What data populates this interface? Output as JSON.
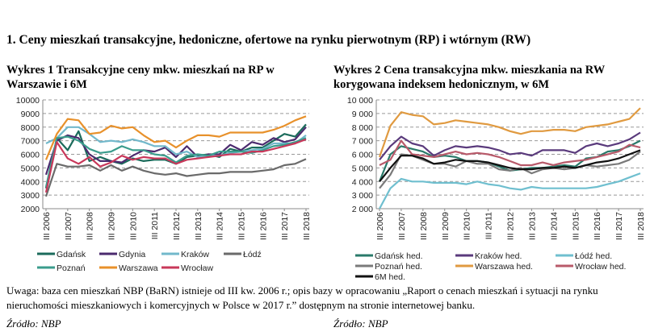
{
  "heading": "1. Ceny mieszkań transakcyjne, hedoniczne, ofertowe na rynku pierwotnym (RP) i wtórnym (RW)",
  "note": "Uwaga: baza cen mieszkań NBP (BaRN) istnieje od III kw. 2006 r.; opis bazy w opracowaniu „Raport o cenach mieszkań i sytuacji na rynku nieruchomości mieszkaniowych i komercyjnych w Polsce w 2017 r.” dostępnym na stronie internetowej banku.",
  "source_left": "Źródło: NBP",
  "source_right": "Źródło: NBP",
  "chart_data": [
    {
      "type": "line",
      "title": "Wykres 1 Transakcyjne ceny mkw. mieszkań na RP w Warszawie i 6M",
      "ylim": [
        2000,
        10000
      ],
      "yticks": [
        "2000",
        "3000",
        "4000",
        "5000",
        "6000",
        "7000",
        "8000",
        "9000",
        "10000"
      ],
      "xticks": [
        "III 2006",
        "III 2007",
        "III 2008",
        "III 2009",
        "III 2010",
        "III 2011",
        "III 2012",
        "III 2013",
        "III 2014",
        "III 2015",
        "III 2016",
        "III 2017",
        "III 2018"
      ],
      "x_points": "half-yearly from III 2006 to III 2018",
      "grid": "horizontal dashed",
      "legend": "bottom",
      "series": [
        {
          "name": "Gdańsk",
          "color": "#1b6b5b",
          "values": [
            3500,
            7200,
            6300,
            7700,
            5500,
            5800,
            5500,
            5300,
            5700,
            5500,
            5600,
            5600,
            5300,
            5800,
            5900,
            6000,
            5800,
            6400,
            6200,
            6500,
            6500,
            7000,
            7500,
            7300,
            8200
          ]
        },
        {
          "name": "Gdynia",
          "color": "#4b2a6e",
          "values": [
            4500,
            7000,
            7400,
            7200,
            6000,
            5500,
            5500,
            5400,
            5900,
            6300,
            6200,
            6500,
            5800,
            6600,
            5800,
            6000,
            6000,
            6700,
            6300,
            6900,
            6700,
            7200,
            6900,
            7100,
            8000
          ]
        },
        {
          "name": "Kraków",
          "color": "#72b8cb",
          "values": [
            6800,
            7200,
            8000,
            8000,
            7500,
            6900,
            7000,
            6900,
            7100,
            6900,
            6600,
            6600,
            6000,
            6200,
            5800,
            5900,
            5900,
            6100,
            6200,
            6300,
            6400,
            6800,
            6800,
            6800,
            7400
          ]
        },
        {
          "name": "Łódź",
          "color": "#6a6a6a",
          "values": [
            2900,
            5300,
            5100,
            5100,
            5200,
            4800,
            5200,
            4800,
            5100,
            4800,
            4600,
            4500,
            4600,
            4400,
            4500,
            4600,
            4600,
            4700,
            4700,
            4700,
            4800,
            4900,
            5200,
            5300,
            5650
          ]
        },
        {
          "name": "Poznań",
          "color": "#3a9c8c",
          "values": [
            3600,
            7200,
            7300,
            7000,
            6400,
            6100,
            6200,
            6600,
            6300,
            6300,
            6000,
            5900,
            5400,
            5900,
            6000,
            5900,
            6200,
            6200,
            6200,
            6100,
            6300,
            6600,
            6700,
            6900,
            7200
          ]
        },
        {
          "name": "Warszawa",
          "color": "#e8912b",
          "values": [
            5600,
            7500,
            8600,
            8500,
            7500,
            7600,
            8100,
            7900,
            8000,
            7400,
            6900,
            7000,
            6500,
            7000,
            7400,
            7400,
            7300,
            7600,
            7600,
            7600,
            7600,
            7800,
            8100,
            8500,
            8800
          ]
        },
        {
          "name": "Wrocław",
          "color": "#c8385a",
          "values": [
            3200,
            6900,
            5700,
            5300,
            5800,
            5100,
            5400,
            5900,
            5600,
            5800,
            5700,
            5700,
            5300,
            5600,
            5700,
            5800,
            5900,
            6000,
            6000,
            6200,
            6200,
            6400,
            6600,
            6800,
            7100
          ]
        }
      ]
    },
    {
      "type": "line",
      "title": "Wykres 2 Cena transakcyjna mkw. mieszkania na RW korygowana indeksem hedonicznym, w 6M",
      "ylim": [
        2000,
        10000
      ],
      "yticks": [
        "2 000",
        "3 000",
        "4 000",
        "5 000",
        "6 000",
        "7 000",
        "8 000",
        "9 000",
        "10 000"
      ],
      "xticks": [
        "III 2006",
        "III 2007",
        "III 2008",
        "III 2009",
        "III 2010",
        "III 2011",
        "III 2012",
        "III 2013",
        "III 2014",
        "III 2015",
        "III 2016",
        "III 2017",
        "III 2018"
      ],
      "x_points": "half-yearly from III 2006 to III 2018",
      "grid": "horizontal dashed",
      "legend": "bottom",
      "series": [
        {
          "name": "Gdańsk hed.",
          "color": "#2a7a6a",
          "values": [
            4000,
            6000,
            6600,
            6400,
            6200,
            5800,
            5900,
            5800,
            5500,
            5500,
            5400,
            5100,
            4800,
            4900,
            5000,
            5000,
            5100,
            5200,
            5100,
            5700,
            5800,
            6200,
            6300,
            6600,
            7000
          ]
        },
        {
          "name": "Kraków hed.",
          "color": "#5a3a7c",
          "values": [
            5600,
            6600,
            7300,
            6800,
            6600,
            5900,
            6300,
            6600,
            6500,
            6600,
            6500,
            6300,
            6000,
            6100,
            5900,
            6300,
            6300,
            6300,
            6100,
            6600,
            6800,
            6600,
            6800,
            7100,
            7600
          ]
        },
        {
          "name": "Łódź hed.",
          "color": "#6fbfcf",
          "values": [
            2000,
            3500,
            4200,
            4000,
            4000,
            3900,
            3900,
            3900,
            3800,
            4000,
            3800,
            3700,
            3500,
            3400,
            3600,
            3500,
            3500,
            3500,
            3500,
            3500,
            3600,
            3800,
            4000,
            4300,
            4600
          ]
        },
        {
          "name": "Poznań hed.",
          "color": "#7a7a7a",
          "values": [
            3500,
            4500,
            6000,
            5900,
            5600,
            5300,
            5300,
            5100,
            5500,
            5300,
            5300,
            4900,
            4800,
            5000,
            4600,
            4900,
            5000,
            4900,
            5000,
            5200,
            5100,
            5200,
            5300,
            5600,
            6200
          ]
        },
        {
          "name": "Warszawa hed.",
          "color": "#e09a40",
          "values": [
            5800,
            8100,
            9100,
            8900,
            8800,
            8200,
            8300,
            8500,
            8400,
            8300,
            8200,
            8000,
            7700,
            7500,
            7700,
            7700,
            7800,
            7800,
            7700,
            8000,
            8100,
            8200,
            8400,
            8600,
            9400
          ]
        },
        {
          "name": "Wrocław hed.",
          "color": "#b85a6a",
          "values": [
            5200,
            5600,
            7000,
            6000,
            5900,
            5800,
            6000,
            6200,
            6000,
            6100,
            6000,
            5800,
            5500,
            5200,
            5200,
            5400,
            5200,
            5400,
            5500,
            5600,
            5800,
            6000,
            6200,
            6700,
            6500
          ]
        },
        {
          "name": "6M hed.",
          "color": "#111111",
          "values": [
            4000,
            5000,
            5900,
            5900,
            5700,
            5300,
            5400,
            5600,
            5500,
            5500,
            5400,
            5200,
            5000,
            4900,
            4900,
            5000,
            5000,
            5100,
            5000,
            5200,
            5400,
            5500,
            5700,
            6000,
            6300
          ]
        }
      ]
    }
  ]
}
